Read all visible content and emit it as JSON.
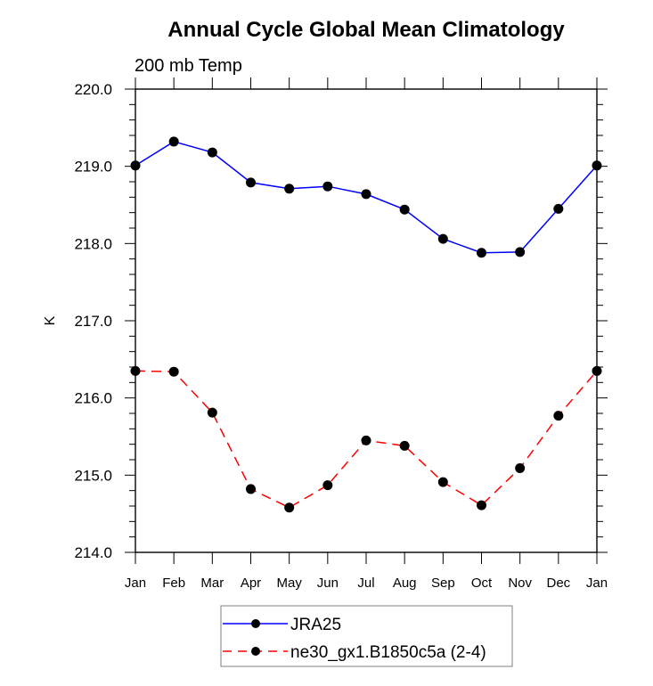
{
  "chart_data": {
    "type": "line",
    "title": "Annual Cycle Global Mean Climatology",
    "subtitle": "200 mb Temp",
    "xlabel": "",
    "ylabel": "K",
    "categories": [
      "Jan",
      "Feb",
      "Mar",
      "Apr",
      "May",
      "Jun",
      "Jul",
      "Aug",
      "Sep",
      "Oct",
      "Nov",
      "Dec",
      "Jan"
    ],
    "ylim": [
      214.0,
      220.0
    ],
    "yticks_major": [
      214.0,
      215.0,
      216.0,
      217.0,
      218.0,
      219.0,
      220.0
    ],
    "ytick_labels": [
      "214.0",
      "215.0",
      "216.0",
      "217.0",
      "218.0",
      "219.0",
      "220.0"
    ],
    "yminor_step": 0.2,
    "grid": false,
    "legend_position": "bottom-center",
    "series": [
      {
        "name": "JRA25",
        "color": "#0000ff",
        "line_style": "solid",
        "marker": "filled-circle",
        "marker_color": "#000000",
        "values": [
          219.01,
          219.32,
          219.18,
          218.79,
          218.71,
          218.74,
          218.64,
          218.44,
          218.06,
          217.88,
          217.89,
          218.45,
          219.01
        ]
      },
      {
        "name": "ne30_gx1.B1850c5a (2-4)",
        "color": "#ff0000",
        "line_style": "dashed",
        "marker": "filled-circle",
        "marker_color": "#000000",
        "values": [
          216.35,
          216.34,
          215.81,
          214.82,
          214.58,
          214.87,
          215.45,
          215.38,
          214.91,
          214.61,
          215.09,
          215.77,
          216.35
        ]
      }
    ]
  }
}
